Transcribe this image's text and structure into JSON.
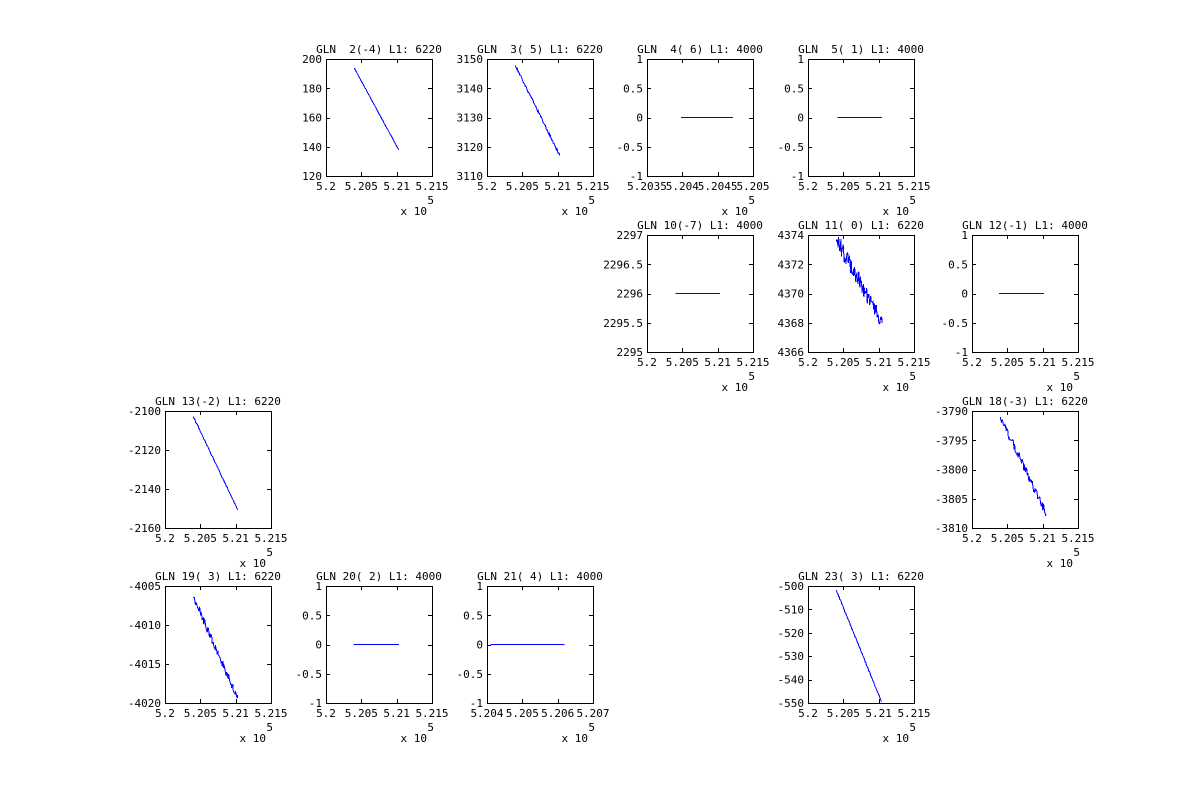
{
  "figure": {
    "background_color": "#ffffff",
    "axis_color": "#000000",
    "text_color": "#000000",
    "line_color": "#0000ff"
  },
  "chart_data": [
    {
      "id": "gln-02",
      "type": "line",
      "title": "GLN  2(-4) L1: 6220",
      "grid": {
        "row": 0,
        "col": 1
      },
      "xlim": [
        5.2,
        5.215
      ],
      "ylim": [
        120,
        200
      ],
      "xtick_vals": [
        5.2,
        5.205,
        5.21,
        5.215
      ],
      "xtick_labels": [
        "5.2",
        "5.205",
        "5.21",
        "5.215"
      ],
      "ytick_vals": [
        120,
        140,
        160,
        180,
        200
      ],
      "ytick_labels": [
        "120",
        "140",
        "160",
        "180",
        "200"
      ],
      "x_exponent": {
        "prefix": "x 10",
        "power": "5"
      },
      "series": [
        {
          "name": "L1",
          "color": "#0000ff",
          "x_start": 5.204,
          "x_end": 5.2103,
          "y_start": 193.8,
          "y_end": 137.8,
          "noise": 0.15
        }
      ]
    },
    {
      "id": "gln-03",
      "type": "line",
      "title": "GLN  3( 5) L1: 6220",
      "grid": {
        "row": 0,
        "col": 2
      },
      "xlim": [
        5.2,
        5.215
      ],
      "ylim": [
        3110,
        3150
      ],
      "xtick_vals": [
        5.2,
        5.205,
        5.21,
        5.215
      ],
      "xtick_labels": [
        "5.2",
        "5.205",
        "5.21",
        "5.215"
      ],
      "ytick_vals": [
        3110,
        3120,
        3130,
        3140,
        3150
      ],
      "ytick_labels": [
        "3110",
        "3120",
        "3130",
        "3140",
        "3150"
      ],
      "x_exponent": {
        "prefix": "x 10",
        "power": "5"
      },
      "series": [
        {
          "name": "L1",
          "color": "#0000ff",
          "x_start": 5.204,
          "x_end": 5.2103,
          "y_start": 3147.8,
          "y_end": 3117.0,
          "noise": 0.45
        }
      ]
    },
    {
      "id": "gln-04",
      "type": "line",
      "title": "GLN  4( 6) L1: 4000",
      "grid": {
        "row": 0,
        "col": 3
      },
      "xlim": [
        5.2035,
        5.205
      ],
      "ylim": [
        -1,
        1
      ],
      "xtick_vals": [
        5.2035,
        5.204,
        5.2045,
        5.205
      ],
      "xtick_labels": [
        "5.2035",
        "5.204",
        "5.2045",
        "5.205"
      ],
      "ytick_vals": [
        -1,
        -0.5,
        0,
        0.5,
        1
      ],
      "ytick_labels": [
        "-1",
        "-0.5",
        "0",
        "0.5",
        "1"
      ],
      "x_exponent": {
        "prefix": "x 10",
        "power": "5"
      },
      "series": [
        {
          "name": "L1",
          "color": "#0000ff",
          "x_start": 5.20398,
          "x_end": 5.20472,
          "y_start": 0,
          "y_end": 0,
          "noise": 0
        }
      ]
    },
    {
      "id": "gln-05",
      "type": "line",
      "title": "GLN  5( 1) L1: 4000",
      "grid": {
        "row": 0,
        "col": 4
      },
      "xlim": [
        5.2,
        5.215
      ],
      "ylim": [
        -1,
        1
      ],
      "xtick_vals": [
        5.2,
        5.205,
        5.21,
        5.215
      ],
      "xtick_labels": [
        "5.2",
        "5.205",
        "5.21",
        "5.215"
      ],
      "ytick_vals": [
        -1,
        -0.5,
        0,
        0.5,
        1
      ],
      "ytick_labels": [
        "-1",
        "-0.5",
        "0",
        "0.5",
        "1"
      ],
      "x_exponent": {
        "prefix": "x 10",
        "power": "5"
      },
      "series": [
        {
          "name": "L1",
          "color": "#0000ff",
          "x_start": 5.2042,
          "x_end": 5.2105,
          "y_start": 0,
          "y_end": 0,
          "noise": 0
        }
      ]
    },
    {
      "id": "gln-10",
      "type": "line",
      "title": "GLN 10(-7) L1: 4000",
      "grid": {
        "row": 1,
        "col": 3
      },
      "xlim": [
        5.2,
        5.215
      ],
      "ylim": [
        2295,
        2297
      ],
      "xtick_vals": [
        5.2,
        5.205,
        5.21,
        5.215
      ],
      "xtick_labels": [
        "5.2",
        "5.205",
        "5.21",
        "5.215"
      ],
      "ytick_vals": [
        2295,
        2295.5,
        2296,
        2296.5,
        2297
      ],
      "ytick_labels": [
        "2295",
        "2295.5",
        "2296",
        "2296.5",
        "2297"
      ],
      "x_exponent": {
        "prefix": "x 10",
        "power": "5"
      },
      "series": [
        {
          "name": "L1",
          "color": "#0000ff",
          "x_start": 5.204,
          "x_end": 5.2103,
          "y_start": 2296,
          "y_end": 2296,
          "noise": 0
        }
      ]
    },
    {
      "id": "gln-11",
      "type": "line",
      "title": "GLN 11( 0) L1: 6220",
      "grid": {
        "row": 1,
        "col": 4
      },
      "xlim": [
        5.2,
        5.215
      ],
      "ylim": [
        4366,
        4374
      ],
      "xtick_vals": [
        5.2,
        5.205,
        5.21,
        5.215
      ],
      "xtick_labels": [
        "5.2",
        "5.205",
        "5.21",
        "5.215"
      ],
      "ytick_vals": [
        4366,
        4368,
        4370,
        4372,
        4374
      ],
      "ytick_labels": [
        "4366",
        "4368",
        "4370",
        "4372",
        "4374"
      ],
      "x_exponent": {
        "prefix": "x 10",
        "power": "5"
      },
      "series": [
        {
          "name": "L1",
          "color": "#0000ff",
          "x_start": 5.204,
          "x_end": 5.2105,
          "y_start": 4373.7,
          "y_end": 4368.0,
          "noise": 0.6
        }
      ]
    },
    {
      "id": "gln-12",
      "type": "line",
      "title": "GLN 12(-1) L1: 4000",
      "grid": {
        "row": 1,
        "col": 5
      },
      "xlim": [
        5.2,
        5.215
      ],
      "ylim": [
        -1,
        1
      ],
      "xtick_vals": [
        5.2,
        5.205,
        5.21,
        5.215
      ],
      "xtick_labels": [
        "5.2",
        "5.205",
        "5.21",
        "5.215"
      ],
      "ytick_vals": [
        -1,
        -0.5,
        0,
        0.5,
        1
      ],
      "ytick_labels": [
        "-1",
        "-0.5",
        "0",
        "0.5",
        "1"
      ],
      "x_exponent": {
        "prefix": "x 10",
        "power": "5"
      },
      "series": [
        {
          "name": "L1",
          "color": "#0000ff",
          "x_start": 5.2038,
          "x_end": 5.2102,
          "y_start": 0,
          "y_end": 0,
          "noise": 0
        }
      ]
    },
    {
      "id": "gln-13",
      "type": "line",
      "title": "GLN 13(-2) L1: 6220",
      "grid": {
        "row": 2,
        "col": 0
      },
      "xlim": [
        5.2,
        5.215
      ],
      "ylim": [
        -2160,
        -2100
      ],
      "xtick_vals": [
        5.2,
        5.205,
        5.21,
        5.215
      ],
      "xtick_labels": [
        "5.2",
        "5.205",
        "5.21",
        "5.215"
      ],
      "ytick_vals": [
        -2160,
        -2140,
        -2120,
        -2100
      ],
      "ytick_labels": [
        "-2160",
        "-2140",
        "-2120",
        "-2100"
      ],
      "x_exponent": {
        "prefix": "x 10",
        "power": "5"
      },
      "series": [
        {
          "name": "L1",
          "color": "#0000ff",
          "x_start": 5.204,
          "x_end": 5.2103,
          "y_start": -2102.8,
          "y_end": -2150.8,
          "noise": 0.35
        }
      ]
    },
    {
      "id": "gln-18",
      "type": "line",
      "title": "GLN 18(-3) L1: 6220",
      "grid": {
        "row": 2,
        "col": 5
      },
      "xlim": [
        5.2,
        5.215
      ],
      "ylim": [
        -3810,
        -3790
      ],
      "xtick_vals": [
        5.2,
        5.205,
        5.21,
        5.215
      ],
      "xtick_labels": [
        "5.2",
        "5.205",
        "5.21",
        "5.215"
      ],
      "ytick_vals": [
        -3810,
        -3805,
        -3800,
        -3795,
        -3790
      ],
      "ytick_labels": [
        "-3810",
        "-3805",
        "-3800",
        "-3795",
        "-3790"
      ],
      "x_exponent": {
        "prefix": "x 10",
        "power": "5"
      },
      "series": [
        {
          "name": "L1",
          "color": "#0000ff",
          "x_start": 5.204,
          "x_end": 5.2105,
          "y_start": -3791.0,
          "y_end": -3807.6,
          "noise": 0.7
        }
      ]
    },
    {
      "id": "gln-19",
      "type": "line",
      "title": "GLN 19( 3) L1: 6220",
      "grid": {
        "row": 3,
        "col": 0
      },
      "xlim": [
        5.2,
        5.215
      ],
      "ylim": [
        -4020,
        -4005
      ],
      "xtick_vals": [
        5.2,
        5.205,
        5.21,
        5.215
      ],
      "xtick_labels": [
        "5.2",
        "5.205",
        "5.21",
        "5.215"
      ],
      "ytick_vals": [
        -4020,
        -4015,
        -4010,
        -4005
      ],
      "ytick_labels": [
        "-4020",
        "-4015",
        "-4010",
        "-4005"
      ],
      "x_exponent": {
        "prefix": "x 10",
        "power": "5"
      },
      "series": [
        {
          "name": "L1",
          "color": "#0000ff",
          "x_start": 5.204,
          "x_end": 5.2103,
          "y_start": -4006.4,
          "y_end": -4019.4,
          "noise": 0.5
        }
      ]
    },
    {
      "id": "gln-20",
      "type": "line",
      "title": "GLN 20( 2) L1: 4000",
      "grid": {
        "row": 3,
        "col": 1
      },
      "xlim": [
        5.2,
        5.215
      ],
      "ylim": [
        -1,
        1
      ],
      "xtick_vals": [
        5.2,
        5.205,
        5.21,
        5.215
      ],
      "xtick_labels": [
        "5.2",
        "5.205",
        "5.21",
        "5.215"
      ],
      "ytick_vals": [
        -1,
        -0.5,
        0,
        0.5,
        1
      ],
      "ytick_labels": [
        "-1",
        "-0.5",
        "0",
        "0.5",
        "1"
      ],
      "x_exponent": {
        "prefix": "x 10",
        "power": "5"
      },
      "series": [
        {
          "name": "L1",
          "color": "#0000ff",
          "x_start": 5.2039,
          "x_end": 5.2103,
          "y_start": 0,
          "y_end": 0,
          "noise": 0
        }
      ]
    },
    {
      "id": "gln-21",
      "type": "line",
      "title": "GLN 21( 4) L1: 4000",
      "grid": {
        "row": 3,
        "col": 2
      },
      "xlim": [
        5.204,
        5.207
      ],
      "ylim": [
        -1,
        1
      ],
      "xtick_vals": [
        5.204,
        5.205,
        5.206,
        5.207
      ],
      "xtick_labels": [
        "5.204",
        "5.205",
        "5.206",
        "5.207"
      ],
      "ytick_vals": [
        -1,
        -0.5,
        0,
        0.5,
        1
      ],
      "ytick_labels": [
        "-1",
        "-0.5",
        "0",
        "0.5",
        "1"
      ],
      "x_exponent": {
        "prefix": "x 10",
        "power": "5"
      },
      "series": [
        {
          "name": "L1",
          "color": "#0000ff",
          "x_start": 5.2041,
          "x_end": 5.2062,
          "y_start": 0,
          "y_end": 0,
          "noise": 0
        }
      ]
    },
    {
      "id": "gln-23",
      "type": "line",
      "title": "GLN 23( 3) L1: 6220",
      "grid": {
        "row": 3,
        "col": 4
      },
      "xlim": [
        5.2,
        5.215
      ],
      "ylim": [
        -550,
        -500
      ],
      "xtick_vals": [
        5.2,
        5.205,
        5.21,
        5.215
      ],
      "xtick_labels": [
        "5.2",
        "5.205",
        "5.21",
        "5.215"
      ],
      "ytick_vals": [
        -550,
        -540,
        -530,
        -520,
        -510,
        -500
      ],
      "ytick_labels": [
        "-550",
        "-540",
        "-530",
        "-520",
        "-510",
        "-500"
      ],
      "x_exponent": {
        "prefix": "x 10",
        "power": "5"
      },
      "series": [
        {
          "name": "L1",
          "color": "#0000ff",
          "x_start": 5.204,
          "x_end": 5.2104,
          "y_start": -501.8,
          "y_end": -549.4,
          "noise": 0.35
        }
      ]
    }
  ]
}
